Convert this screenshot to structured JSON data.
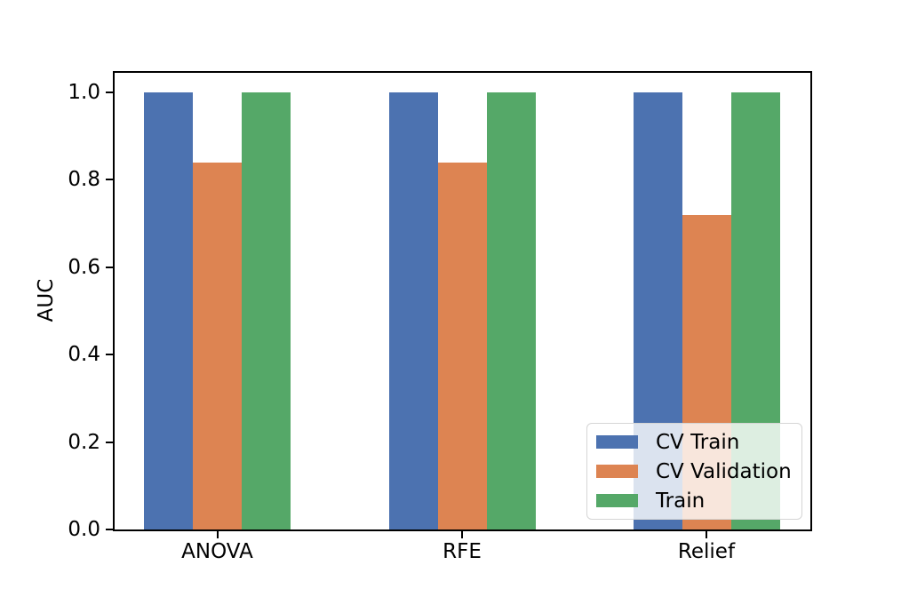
{
  "figure": {
    "background": "#ffffff"
  },
  "chart_data": {
    "type": "bar",
    "title": "",
    "xlabel": "",
    "ylabel": "AUC",
    "categories": [
      "ANOVA",
      "RFE",
      "Relief"
    ],
    "series": [
      {
        "name": "CV Train",
        "color": "#4C72B0",
        "values": [
          1.0,
          1.0,
          1.0
        ]
      },
      {
        "name": "CV Validation",
        "color": "#DD8452",
        "values": [
          0.84,
          0.84,
          0.72
        ]
      },
      {
        "name": "Train",
        "color": "#55A868",
        "values": [
          1.0,
          1.0,
          1.0
        ]
      }
    ],
    "ylim": [
      0.0,
      1.05
    ],
    "yticks": [
      "0.0",
      "0.2",
      "0.4",
      "0.6",
      "0.8",
      "1.0"
    ],
    "grid": false,
    "legend": {
      "position": "lower right",
      "entries": [
        "CV Train",
        "CV Validation",
        "Train"
      ]
    },
    "axis_color": "#000000"
  }
}
